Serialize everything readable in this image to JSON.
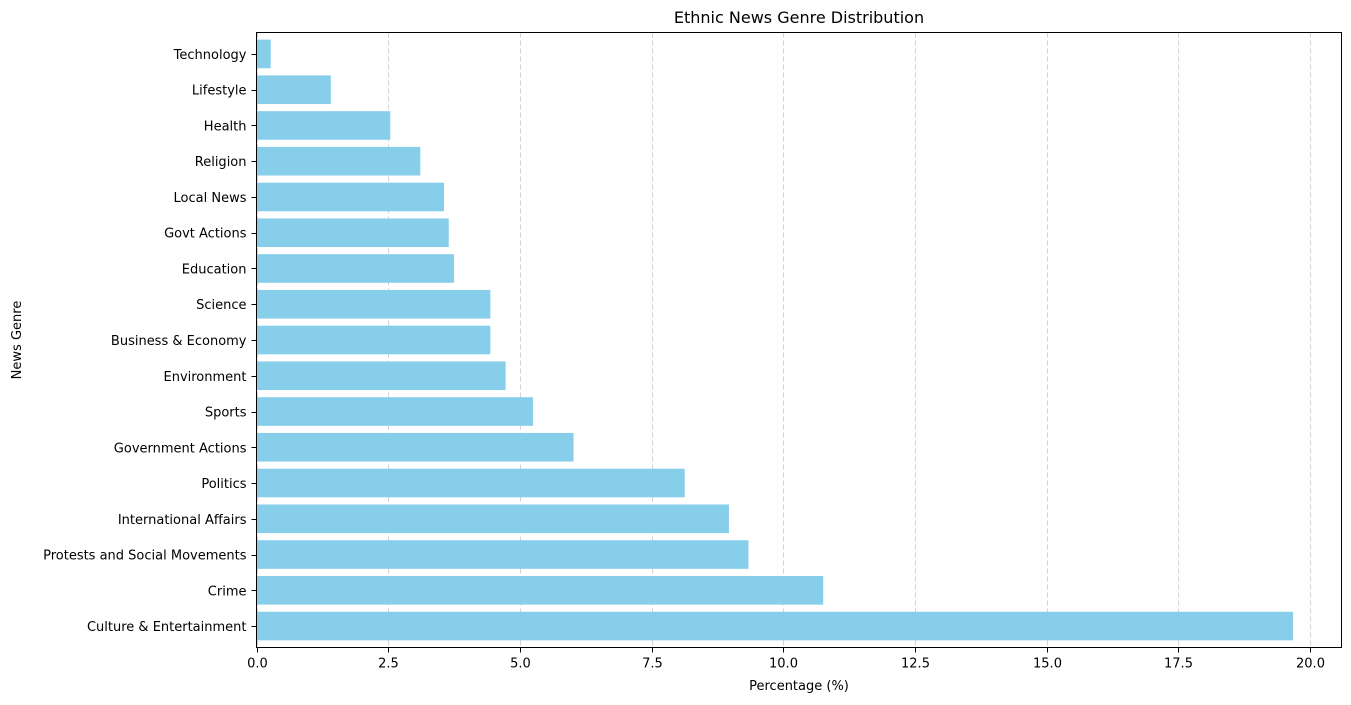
{
  "chart_data": {
    "type": "bar",
    "orientation": "horizontal",
    "title": "Ethnic News Genre Distribution",
    "xlabel": "Percentage (%)",
    "ylabel": "News Genre",
    "xlim": [
      0,
      20.6
    ],
    "xticks": [
      0.0,
      2.5,
      5.0,
      7.5,
      10.0,
      12.5,
      15.0,
      17.5,
      20.0
    ],
    "xtick_labels": [
      "0.0",
      "2.5",
      "5.0",
      "7.5",
      "10.0",
      "12.5",
      "15.0",
      "17.5",
      "20.0"
    ],
    "grid": "x-axis dashed",
    "bar_color": "#87CEEB",
    "categories": [
      "Culture & Entertainment",
      "Crime",
      "Protests and Social Movements",
      "International Affairs",
      "Politics",
      "Government Actions",
      "Sports",
      "Environment",
      "Business & Economy",
      "Science",
      "Education",
      "Govt Actions",
      "Local News",
      "Religion",
      "Health",
      "Lifestyle",
      "Technology"
    ],
    "values": [
      19.68,
      10.76,
      9.34,
      8.97,
      8.13,
      6.02,
      5.25,
      4.73,
      4.44,
      4.44,
      3.75,
      3.65,
      3.56,
      3.11,
      2.54,
      1.41,
      0.27
    ]
  }
}
